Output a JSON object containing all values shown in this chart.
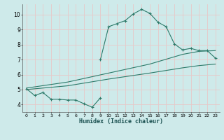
{
  "xlabel": "Humidex (Indice chaleur)",
  "bg_color": "#ceeaea",
  "grid_color": "#e8c8c8",
  "line_color": "#2d7a6a",
  "xlim": [
    -0.5,
    23.5
  ],
  "ylim": [
    3.5,
    10.7
  ],
  "xticks": [
    0,
    1,
    2,
    3,
    4,
    5,
    6,
    7,
    8,
    9,
    10,
    11,
    12,
    13,
    14,
    15,
    16,
    17,
    18,
    19,
    20,
    21,
    22,
    23
  ],
  "yticks": [
    4,
    5,
    6,
    7,
    8,
    9,
    10
  ],
  "upper_curve_x": [
    9,
    10,
    11,
    12,
    13,
    14,
    15,
    16,
    17,
    18,
    19,
    20,
    21,
    22,
    23
  ],
  "upper_curve_y": [
    7.0,
    9.2,
    9.4,
    9.6,
    10.05,
    10.35,
    10.1,
    9.5,
    9.2,
    8.05,
    7.65,
    7.75,
    7.6,
    7.6,
    7.1
  ],
  "lower_zigzag_x": [
    0,
    1,
    2,
    3,
    4,
    5,
    6,
    7,
    8,
    9
  ],
  "lower_zigzag_y": [
    5.05,
    4.6,
    4.8,
    4.35,
    4.35,
    4.3,
    4.3,
    4.05,
    3.82,
    4.45
  ],
  "mid_upper_line_x": [
    0,
    5,
    10,
    15,
    19,
    21,
    23
  ],
  "mid_upper_line_y": [
    5.1,
    5.5,
    6.1,
    6.7,
    7.35,
    7.55,
    7.6
  ],
  "mid_lower_line_x": [
    0,
    5,
    10,
    15,
    19,
    21,
    23
  ],
  "mid_lower_line_y": [
    5.0,
    5.25,
    5.7,
    6.1,
    6.45,
    6.6,
    6.7
  ]
}
